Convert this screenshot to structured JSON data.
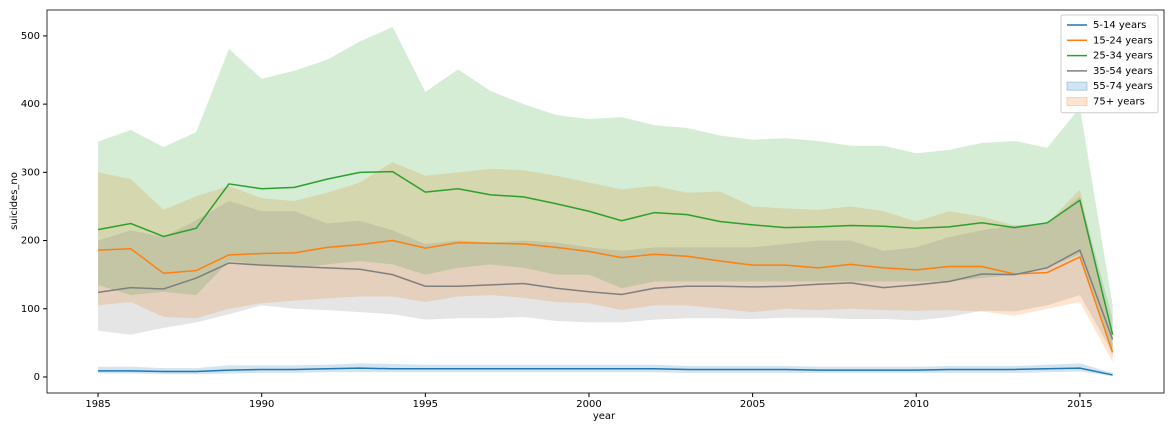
{
  "chart_data": {
    "type": "line",
    "xlabel": "year",
    "ylabel": "suicides_no",
    "x": [
      1985,
      1986,
      1987,
      1988,
      1989,
      1990,
      1991,
      1992,
      1993,
      1994,
      1995,
      1996,
      1997,
      1998,
      1999,
      2000,
      2001,
      2002,
      2003,
      2004,
      2005,
      2006,
      2007,
      2008,
      2009,
      2010,
      2011,
      2012,
      2013,
      2014,
      2015,
      2016
    ],
    "xlim": [
      1983.44,
      2017.57
    ],
    "xticks": [
      1985,
      1990,
      1995,
      2000,
      2005,
      2010,
      2015
    ],
    "ylim": [
      -23.5,
      538
    ],
    "yticks": [
      0,
      100,
      200,
      300,
      400,
      500
    ],
    "legend_position": "upper right",
    "series": [
      {
        "name": "5-14 years",
        "color": "#1f77b4",
        "values": [
          9,
          9,
          8,
          8,
          10,
          11,
          11,
          12,
          13,
          12,
          12,
          12,
          12,
          12,
          12,
          12,
          12,
          12,
          11,
          11,
          11,
          11,
          10,
          10,
          10,
          10,
          11,
          11,
          11,
          12,
          13,
          3
        ],
        "lower": [
          5,
          5,
          4,
          4,
          5,
          6,
          6,
          7,
          7,
          7,
          7,
          7,
          7,
          7,
          7,
          7,
          7,
          7,
          6,
          6,
          6,
          6,
          6,
          6,
          6,
          6,
          6,
          6,
          6,
          7,
          8,
          1
        ],
        "upper": [
          15,
          15,
          13,
          13,
          17,
          17,
          17,
          18,
          20,
          19,
          18,
          18,
          18,
          18,
          18,
          18,
          18,
          18,
          16,
          16,
          16,
          16,
          15,
          15,
          15,
          15,
          16,
          16,
          16,
          18,
          20,
          6
        ]
      },
      {
        "name": "15-24 years",
        "color": "#ff7f0e",
        "values": [
          186,
          188,
          152,
          156,
          179,
          181,
          182,
          190,
          194,
          200,
          189,
          197,
          196,
          195,
          190,
          184,
          175,
          180,
          177,
          170,
          164,
          164,
          160,
          165,
          160,
          157,
          162,
          162,
          151,
          153,
          176,
          36
        ],
        "lower": [
          105,
          110,
          88,
          86,
          100,
          108,
          112,
          115,
          118,
          118,
          110,
          118,
          120,
          116,
          110,
          108,
          98,
          105,
          105,
          100,
          95,
          100,
          98,
          100,
          98,
          97,
          98,
          96,
          90,
          100,
          110,
          22
        ],
        "upper": [
          300,
          290,
          245,
          265,
          280,
          262,
          258,
          270,
          285,
          315,
          295,
          300,
          305,
          303,
          295,
          285,
          275,
          280,
          270,
          272,
          250,
          247,
          245,
          250,
          243,
          228,
          243,
          235,
          222,
          225,
          275,
          50
        ]
      },
      {
        "name": "25-34 years",
        "color": "#2ca02c",
        "values": [
          216,
          225,
          206,
          218,
          283,
          276,
          278,
          290,
          300,
          301,
          271,
          276,
          267,
          264,
          254,
          243,
          229,
          241,
          238,
          228,
          223,
          219,
          220,
          222,
          221,
          218,
          220,
          226,
          219,
          226,
          259,
          62
        ],
        "lower": [
          135,
          120,
          125,
          120,
          170,
          165,
          160,
          165,
          170,
          165,
          150,
          160,
          165,
          160,
          150,
          150,
          130,
          140,
          140,
          140,
          140,
          140,
          140,
          140,
          140,
          140,
          140,
          145,
          150,
          160,
          180,
          30
        ],
        "upper": [
          345,
          362,
          337,
          359,
          481,
          437,
          449,
          465,
          492,
          513,
          418,
          451,
          419,
          400,
          384,
          378,
          381,
          369,
          365,
          354,
          348,
          350,
          346,
          339,
          339,
          328,
          333,
          343,
          346,
          336,
          395,
          105
        ]
      },
      {
        "name": "35-54 years",
        "color": "#7f7f7f",
        "values": [
          124,
          131,
          129,
          145,
          167,
          164,
          162,
          160,
          158,
          150,
          133,
          133,
          135,
          137,
          130,
          125,
          121,
          130,
          133,
          133,
          132,
          133,
          136,
          138,
          131,
          135,
          140,
          151,
          150,
          160,
          186,
          55
        ],
        "lower": [
          68,
          62,
          72,
          80,
          92,
          105,
          100,
          98,
          95,
          92,
          84,
          86,
          86,
          88,
          82,
          80,
          80,
          84,
          86,
          86,
          85,
          87,
          87,
          85,
          85,
          83,
          88,
          97,
          96,
          105,
          120,
          35
        ],
        "upper": [
          200,
          215,
          205,
          230,
          258,
          243,
          243,
          225,
          229,
          215,
          195,
          200,
          197,
          200,
          197,
          190,
          185,
          190,
          190,
          190,
          190,
          195,
          200,
          200,
          185,
          190,
          205,
          215,
          222,
          225,
          265,
          85
        ]
      }
    ],
    "legend_patches": [
      {
        "name": "55-74 years",
        "color": "#1f77b4"
      },
      {
        "name": "75+ years",
        "color": "#ff7f0e"
      }
    ]
  }
}
